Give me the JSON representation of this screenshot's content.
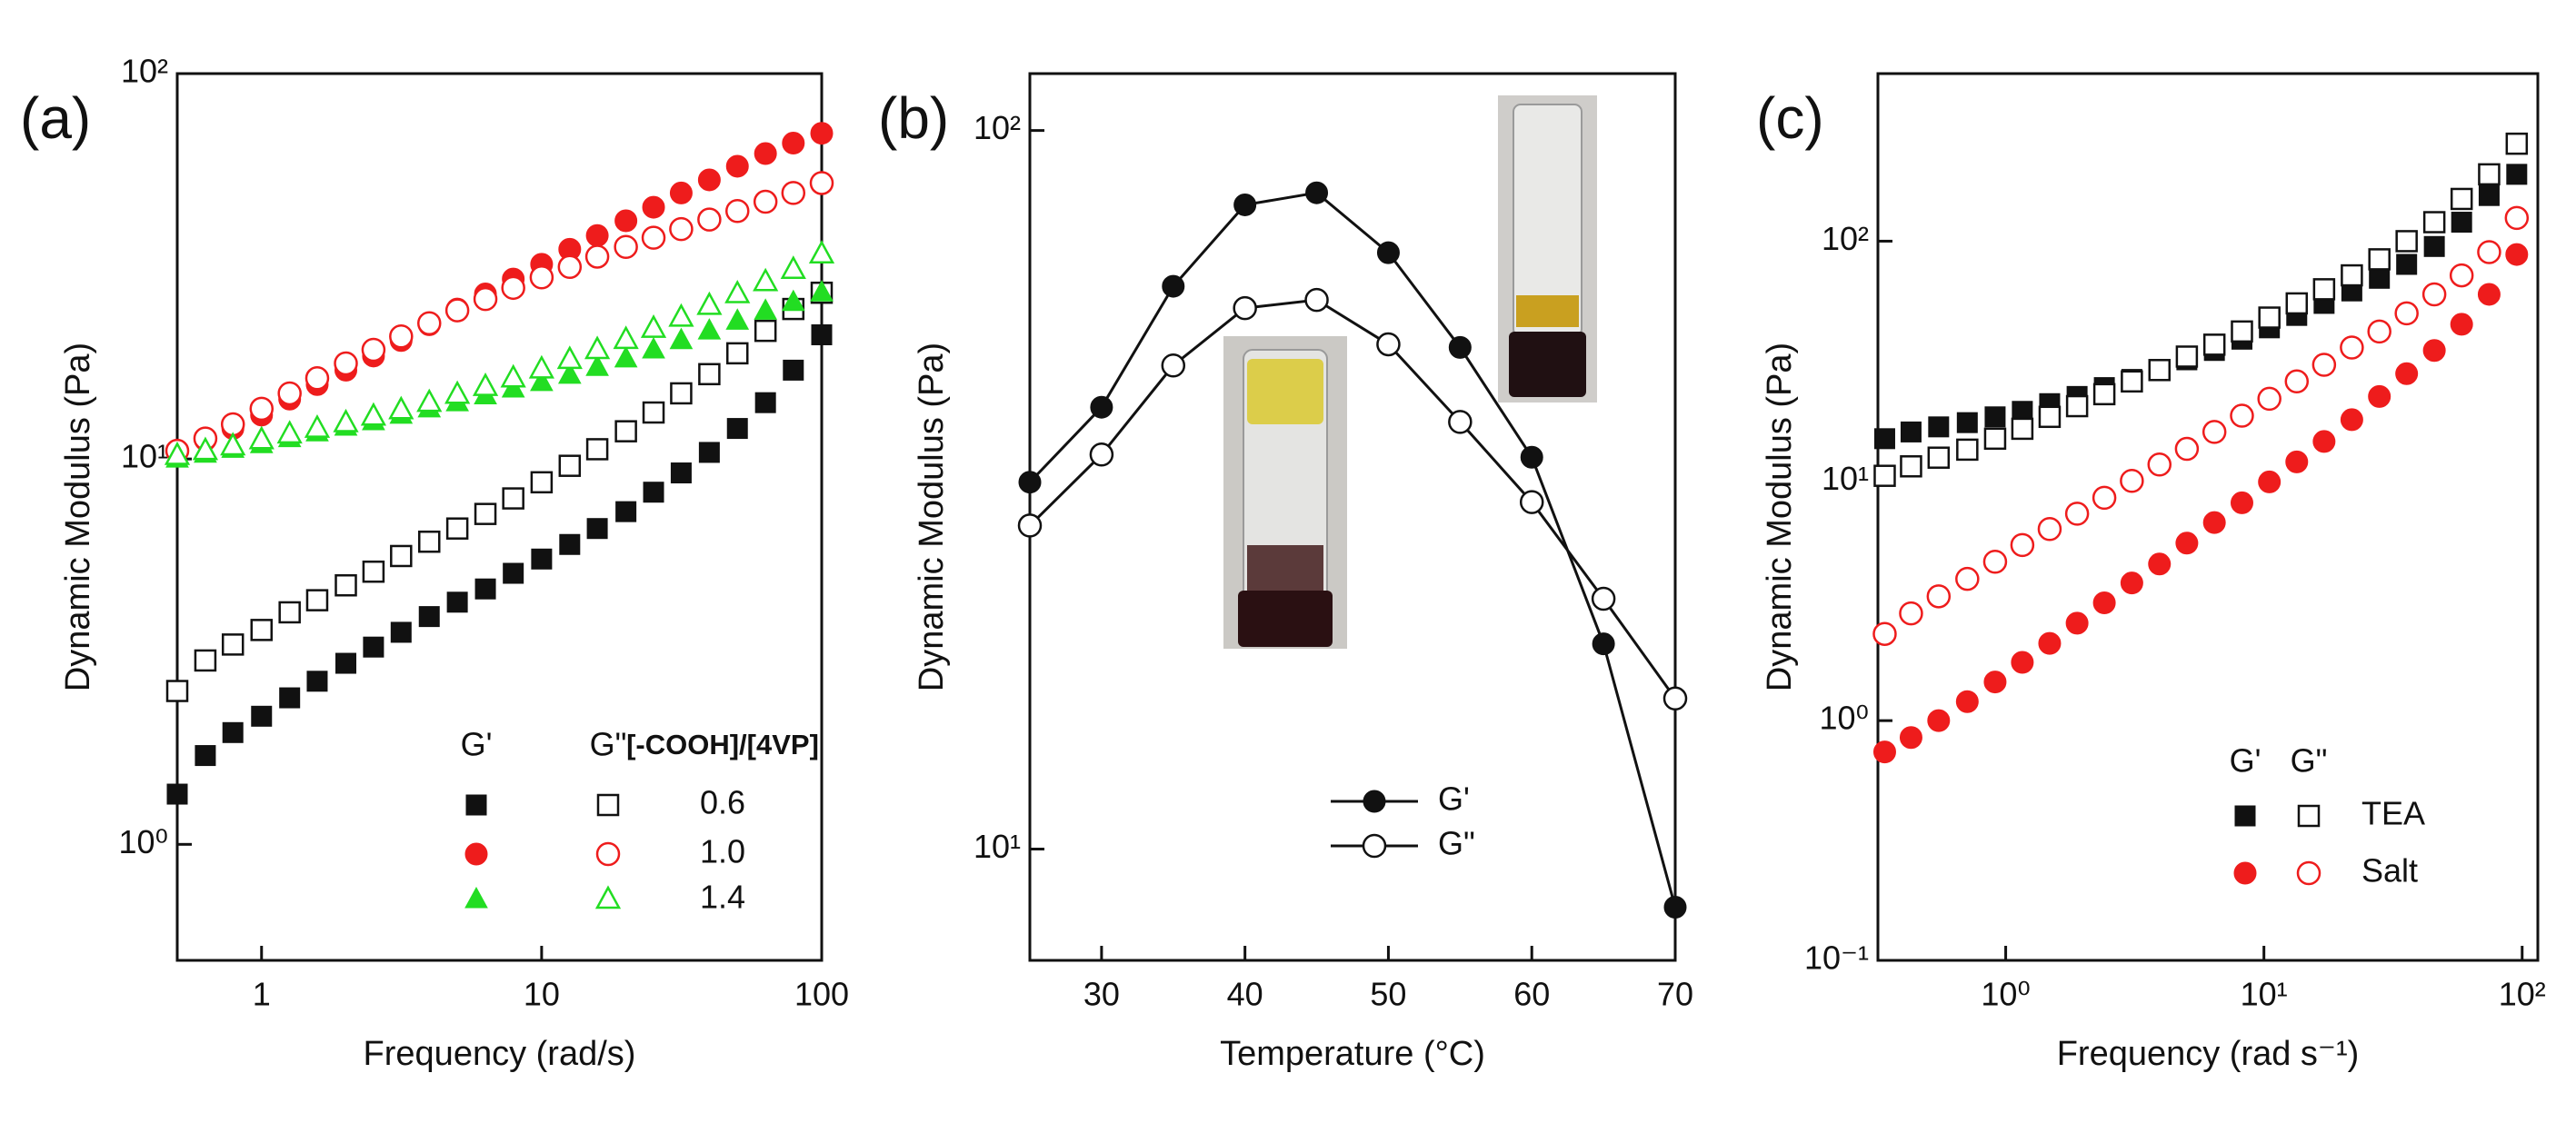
{
  "chart_data": [
    {
      "type": "scatter",
      "panel_label": "(a)",
      "xlabel": "Frequency (rad/s)",
      "ylabel": "Dynamic Modulus (Pa)",
      "xscale": "log",
      "yscale": "log",
      "xlim": [
        0.5,
        100
      ],
      "ylim": [
        0.5,
        100
      ],
      "xticks": [
        1,
        10,
        100
      ],
      "yticks": [
        {
          "value": 1,
          "label": "10⁰"
        },
        {
          "value": 10,
          "label": "10¹"
        },
        {
          "value": 100,
          "label": "10²"
        }
      ],
      "x": [
        0.5,
        0.63,
        0.79,
        1,
        1.26,
        1.58,
        2,
        2.51,
        3.15,
        3.97,
        5,
        6.3,
        7.92,
        10,
        12.6,
        15.8,
        20,
        25.1,
        31.5,
        39.7,
        50,
        63,
        79.2,
        100
      ],
      "series": [
        {
          "marker": "square",
          "filled": true,
          "color": "#111111",
          "values": [
            1.35,
            1.7,
            1.95,
            2.15,
            2.4,
            2.65,
            2.95,
            3.25,
            3.55,
            3.9,
            4.25,
            4.6,
            5.05,
            5.5,
            6.0,
            6.6,
            7.3,
            8.2,
            9.2,
            10.4,
            12,
            14,
            17,
            21
          ]
        },
        {
          "marker": "square",
          "filled": false,
          "color": "#111111",
          "values": [
            2.5,
            3.0,
            3.3,
            3.6,
            4.0,
            4.3,
            4.7,
            5.1,
            5.6,
            6.1,
            6.6,
            7.2,
            7.9,
            8.7,
            9.6,
            10.6,
            11.8,
            13.2,
            14.8,
            16.6,
            18.8,
            21.5,
            24.5,
            27
          ]
        },
        {
          "marker": "circle",
          "filled": true,
          "color": "#ee1c1c",
          "values": [
            10.5,
            11.2,
            12,
            13,
            14.3,
            15.6,
            17,
            18.5,
            20.3,
            22.3,
            24.5,
            26.8,
            29.3,
            32,
            35,
            38,
            41.5,
            45,
            49,
            53,
            57.5,
            62,
            66,
            70
          ]
        },
        {
          "marker": "circle",
          "filled": false,
          "color": "#ee1c1c",
          "values": [
            10.5,
            11.3,
            12.3,
            13.5,
            14.8,
            16.2,
            17.7,
            19.2,
            20.8,
            22.5,
            24.3,
            26,
            27.8,
            29.6,
            31.5,
            33.5,
            35.5,
            37.5,
            39.5,
            41.8,
            44,
            46.5,
            49,
            52
          ]
        },
        {
          "marker": "triangle",
          "filled": true,
          "color": "#22dd22",
          "values": [
            10,
            10.3,
            10.6,
            10.9,
            11.3,
            11.7,
            12.1,
            12.5,
            13,
            13.5,
            14,
            14.6,
            15.2,
            15.8,
            16.5,
            17.3,
            18.2,
            19.2,
            20.3,
            21.5,
            22.8,
            24.2,
            25.5,
            27
          ]
        },
        {
          "marker": "triangle",
          "filled": false,
          "color": "#22dd22",
          "values": [
            10.2,
            10.5,
            10.8,
            11.2,
            11.6,
            12,
            12.4,
            12.9,
            13.4,
            14,
            14.7,
            15.4,
            16.2,
            17.1,
            18.1,
            19.2,
            20.4,
            21.8,
            23.3,
            25,
            26.8,
            28.8,
            31,
            34
          ]
        }
      ],
      "legend": {
        "columns": [
          "G'",
          "G\""
        ],
        "header": "[-COOH]/[4VP]",
        "rows": [
          "0.6",
          "1.0",
          "1.4"
        ]
      }
    },
    {
      "type": "line",
      "panel_label": "(b)",
      "xlabel": "Temperature (°C)",
      "ylabel": "Dynamic Modulus (Pa)",
      "yscale": "log",
      "xlim": [
        25,
        70
      ],
      "ylim": [
        7,
        120
      ],
      "xticks": [
        30,
        40,
        50,
        60,
        70
      ],
      "yticks": [
        {
          "value": 10,
          "label": "10¹"
        },
        {
          "value": 100,
          "label": "10²"
        }
      ],
      "x": [
        25,
        30,
        35,
        40,
        45,
        50,
        55,
        60,
        65,
        70
      ],
      "series": [
        {
          "name": "G'",
          "marker": "circle",
          "filled": true,
          "color": "#111111",
          "values": [
            32.4,
            41.2,
            60.7,
            78.8,
            81.9,
            67.6,
            49.9,
            35.1,
            19.3,
            8.3
          ]
        },
        {
          "name": "G\"",
          "marker": "circle",
          "filled": false,
          "color": "#111111",
          "values": [
            28.2,
            35.4,
            47.1,
            56.6,
            58.1,
            50.4,
            39.3,
            30.4,
            22.3,
            16.2
          ]
        }
      ]
    },
    {
      "type": "scatter",
      "panel_label": "(c)",
      "xlabel": "Frequency (rad s⁻¹)",
      "ylabel": "Dynamic Modulus (Pa)",
      "xscale": "log",
      "yscale": "log",
      "xlim": [
        0.32,
        115
      ],
      "ylim": [
        0.1,
        500
      ],
      "xticks": [
        {
          "value": 1,
          "label": "10⁰"
        },
        {
          "value": 10,
          "label": "10¹"
        },
        {
          "value": 100,
          "label": "10²"
        }
      ],
      "yticks": [
        {
          "value": 0.1,
          "label": "10⁻¹"
        },
        {
          "value": 1,
          "label": "10⁰"
        },
        {
          "value": 10,
          "label": "10¹"
        },
        {
          "value": 100,
          "label": "10²"
        }
      ],
      "x": [
        0.34,
        0.43,
        0.55,
        0.71,
        0.91,
        1.16,
        1.48,
        1.89,
        2.41,
        3.08,
        3.94,
        5.03,
        6.43,
        8.22,
        10.5,
        13.4,
        17.1,
        21.9,
        28,
        35.7,
        45.7,
        58.3,
        74.5,
        95.3
      ],
      "series": [
        {
          "marker": "square",
          "filled": true,
          "color": "#111111",
          "values": [
            15,
            16,
            16.8,
            17.5,
            18.5,
            19.5,
            21,
            22.5,
            24.5,
            26.5,
            29,
            32,
            35,
            39,
            43.5,
            49,
            55,
            62,
            70,
            80,
            95,
            120,
            155,
            190
          ]
        },
        {
          "marker": "square",
          "filled": false,
          "color": "#111111",
          "values": [
            10.5,
            11.5,
            12.5,
            13.5,
            15,
            16.5,
            18.5,
            20.5,
            23,
            26,
            29,
            33,
            37,
            42,
            48,
            55,
            63,
            72,
            84,
            100,
            120,
            150,
            190,
            255
          ]
        },
        {
          "marker": "circle",
          "filled": true,
          "color": "#ee1c1c",
          "values": [
            0.74,
            0.85,
            1.0,
            1.2,
            1.45,
            1.75,
            2.1,
            2.55,
            3.1,
            3.75,
            4.5,
            5.5,
            6.7,
            8.1,
            9.9,
            12,
            14.6,
            18,
            22.5,
            28,
            35,
            45,
            60,
            88
          ]
        },
        {
          "marker": "circle",
          "filled": false,
          "color": "#ee1c1c",
          "values": [
            2.3,
            2.8,
            3.3,
            3.9,
            4.6,
            5.4,
            6.3,
            7.3,
            8.5,
            10,
            11.7,
            13.6,
            16,
            18.7,
            22,
            26,
            30.5,
            36,
            42,
            50,
            60,
            72,
            90,
            125
          ]
        }
      ],
      "legend": {
        "columns": [
          "G'",
          "G\""
        ],
        "rows": [
          "TEA",
          "Salt"
        ]
      }
    }
  ]
}
